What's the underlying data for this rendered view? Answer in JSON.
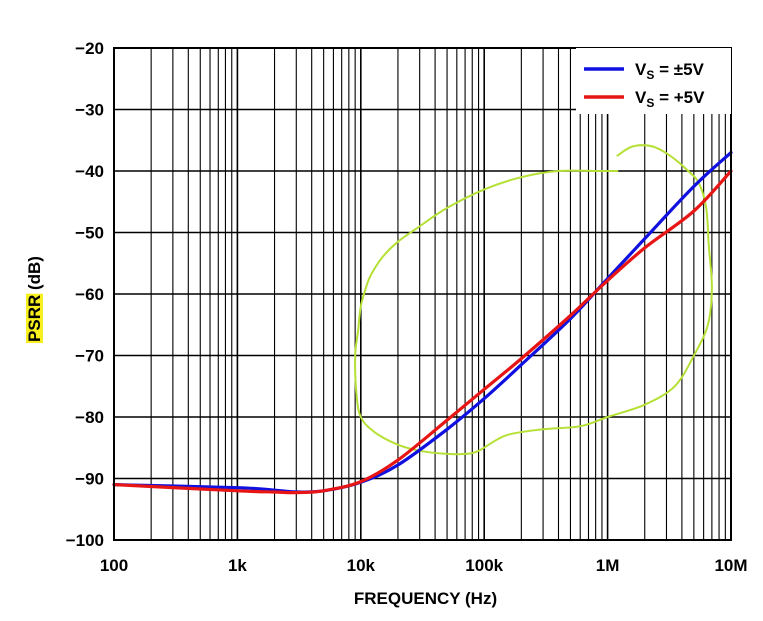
{
  "chart_data": {
    "type": "line",
    "xscale": "log",
    "xlim": [
      100,
      10000000
    ],
    "ylim": [
      -100,
      -20
    ],
    "xlabel": "FREQUENCY (Hz)",
    "ylabel": "PSRR (dB)",
    "ylabel_highlight": "PSRR",
    "ylabel_unit": "(dB)",
    "xticks": [
      {
        "value": 100,
        "label": "100"
      },
      {
        "value": 1000,
        "label": "1k"
      },
      {
        "value": 10000,
        "label": "10k"
      },
      {
        "value": 100000,
        "label": "100k"
      },
      {
        "value": 1000000,
        "label": "1M"
      },
      {
        "value": 10000000,
        "label": "10M"
      }
    ],
    "yticks": [
      {
        "value": -20,
        "label": "−20"
      },
      {
        "value": -30,
        "label": "−30"
      },
      {
        "value": -40,
        "label": "−40"
      },
      {
        "value": -50,
        "label": "−50"
      },
      {
        "value": -60,
        "label": "−60"
      },
      {
        "value": -70,
        "label": "−70"
      },
      {
        "value": -80,
        "label": "−80"
      },
      {
        "value": -90,
        "label": "−90"
      },
      {
        "value": -100,
        "label": "−100"
      }
    ],
    "grid": true,
    "legend_position": "top-right",
    "series": [
      {
        "name": "VS = ±5V",
        "legend_main": "V",
        "legend_sub": "S",
        "legend_rest": " = ±5V",
        "color": "#1010e0",
        "x": [
          100,
          1000,
          2000,
          3000,
          5000,
          10000,
          20000,
          50000,
          100000,
          200000,
          500000,
          1000000,
          2000000,
          5000000,
          10000000
        ],
        "y": [
          -91,
          -91.5,
          -91.9,
          -92.2,
          -92,
          -90.6,
          -87.8,
          -82,
          -77,
          -71.5,
          -64,
          -57.5,
          -51,
          -42.5,
          -37
        ]
      },
      {
        "name": "VS = +5V",
        "legend_main": "V",
        "legend_sub": "S",
        "legend_rest": " = +5V",
        "color": "#e81515",
        "x": [
          100,
          1000,
          2000,
          3000,
          5000,
          10000,
          20000,
          50000,
          100000,
          200000,
          500000,
          1000000,
          2000000,
          5000000,
          10000000
        ],
        "y": [
          -91,
          -92,
          -92.2,
          -92.3,
          -92,
          -90.5,
          -87,
          -80.5,
          -75.5,
          -70.5,
          -63.5,
          -57.8,
          -52.5,
          -46.5,
          -40
        ]
      }
    ],
    "annotation": {
      "type": "hand-drawn-loop",
      "color": "#b5e035",
      "x": [
        1200000,
        800000,
        400000,
        200000,
        100000,
        50000,
        30000,
        20000,
        15000,
        12000,
        11000,
        10000,
        9500,
        9000,
        9200,
        10000,
        13000,
        20000,
        30000,
        50000,
        70000,
        90000,
        150000,
        300000,
        600000,
        1000000,
        2000000,
        3500000,
        5000000,
        6500000,
        7000000,
        6600000,
        6300000,
        5500000,
        4500000,
        3200000,
        2300000,
        1600000,
        1200000
      ],
      "y": [
        -40,
        -40,
        -40,
        -41,
        -43,
        -46,
        -49,
        -51.5,
        -54,
        -57,
        -59,
        -62,
        -66,
        -70,
        -76,
        -80,
        -82.5,
        -84.5,
        -85.5,
        -86,
        -86,
        -85.5,
        -83,
        -82,
        -81.5,
        -80,
        -78,
        -75,
        -70,
        -65,
        -59,
        -52,
        -46,
        -42,
        -40,
        -37.5,
        -36,
        -36,
        -37.5
      ]
    }
  }
}
